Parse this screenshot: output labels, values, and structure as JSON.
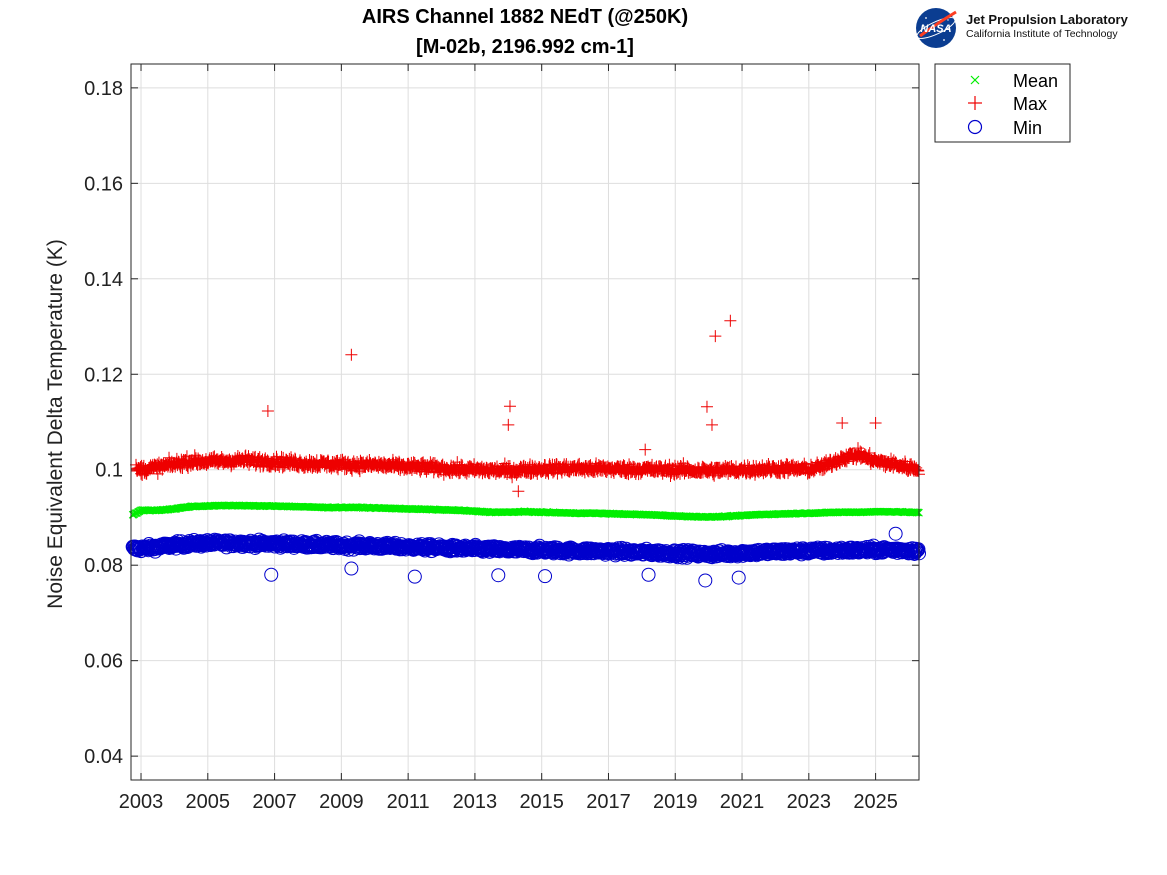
{
  "logo": {
    "name": "Jet Propulsion Laboratory",
    "subtitle": "California Institute of Technology",
    "badge": "NASA",
    "badge_icon": "nasa-meatball-icon"
  },
  "chart_data": {
    "type": "scatter",
    "title": "AIRS Channel 1882 NEdT (@250K)",
    "subtitle": "[M-02b, 2196.992 cm-1]",
    "xlabel": "",
    "ylabel": "Noise Equivalent Delta Temperature (K)",
    "xlim": [
      2002.7,
      2026.3
    ],
    "ylim": [
      0.035,
      0.185
    ],
    "x_ticks": [
      2003,
      2005,
      2007,
      2009,
      2011,
      2013,
      2015,
      2017,
      2019,
      2021,
      2023,
      2025
    ],
    "x_tick_labels": [
      "2003",
      "2005",
      "2007",
      "2009",
      "2011",
      "2013",
      "2015",
      "2017",
      "2019",
      "2021",
      "2023",
      "2025"
    ],
    "y_ticks": [
      0.04,
      0.06,
      0.08,
      0.1,
      0.12,
      0.14,
      0.16,
      0.18
    ],
    "y_tick_labels": [
      "0.04",
      "0.06",
      "0.08",
      "0.1",
      "0.12",
      "0.14",
      "0.16",
      "0.18"
    ],
    "grid": true,
    "legend_position": "outside-top-right",
    "colors": {
      "mean": "#00ee00",
      "max": "#ee0000",
      "min": "#0000cc"
    },
    "series": [
      {
        "name": "Mean",
        "marker": "x",
        "x": [
          2002.75,
          2003.0,
          2003.5,
          2004.0,
          2004.5,
          2005.0,
          2005.5,
          2006.0,
          2006.5,
          2007.0,
          2007.5,
          2008.0,
          2008.5,
          2009.0,
          2009.5,
          2010.0,
          2010.5,
          2011.0,
          2011.5,
          2012.0,
          2012.5,
          2013.0,
          2013.5,
          2014.0,
          2014.5,
          2015.0,
          2015.5,
          2016.0,
          2016.5,
          2017.0,
          2017.5,
          2018.0,
          2018.5,
          2019.0,
          2019.5,
          2020.0,
          2020.5,
          2021.0,
          2021.5,
          2022.0,
          2022.5,
          2023.0,
          2023.5,
          2024.0,
          2024.5,
          2025.0,
          2025.5,
          2026.0,
          2026.3
        ],
        "y": [
          0.0905,
          0.0915,
          0.0915,
          0.0918,
          0.0923,
          0.0924,
          0.0925,
          0.0925,
          0.0924,
          0.0924,
          0.0923,
          0.0922,
          0.0921,
          0.0921,
          0.0921,
          0.092,
          0.0919,
          0.0918,
          0.0917,
          0.0916,
          0.0915,
          0.0913,
          0.0911,
          0.0911,
          0.0912,
          0.0911,
          0.091,
          0.0909,
          0.0909,
          0.0908,
          0.0907,
          0.0906,
          0.0905,
          0.0903,
          0.0902,
          0.0901,
          0.0902,
          0.0904,
          0.0906,
          0.0907,
          0.0908,
          0.0909,
          0.091,
          0.0911,
          0.0911,
          0.0912,
          0.0912,
          0.0911,
          0.091
        ]
      },
      {
        "name": "Max",
        "marker": "+",
        "x": [
          2003.0,
          2003.5,
          2004.0,
          2004.5,
          2005.0,
          2005.5,
          2006.0,
          2006.5,
          2007.0,
          2007.5,
          2008.0,
          2008.5,
          2009.0,
          2009.5,
          2010.0,
          2010.5,
          2011.0,
          2011.5,
          2012.0,
          2012.5,
          2013.0,
          2013.5,
          2014.0,
          2014.5,
          2015.0,
          2015.5,
          2016.0,
          2016.5,
          2017.0,
          2017.5,
          2018.0,
          2018.5,
          2019.0,
          2019.5,
          2020.0,
          2020.5,
          2021.0,
          2021.5,
          2022.0,
          2022.5,
          2023.0,
          2023.5,
          2024.0,
          2024.5,
          2025.0,
          2025.5,
          2026.0,
          2026.3
        ],
        "y": [
          0.1,
          0.1005,
          0.1012,
          0.1018,
          0.1017,
          0.1018,
          0.102,
          0.1018,
          0.1017,
          0.1015,
          0.1013,
          0.1012,
          0.1011,
          0.101,
          0.101,
          0.1008,
          0.1006,
          0.1005,
          0.1003,
          0.1001,
          0.1,
          0.0999,
          0.0998,
          0.1,
          0.1002,
          0.1003,
          0.1003,
          0.1002,
          0.1002,
          0.1001,
          0.1001,
          0.1,
          0.1,
          0.0999,
          0.0998,
          0.0999,
          0.1,
          0.1001,
          0.1002,
          0.1002,
          0.1001,
          0.1008,
          0.1025,
          0.1032,
          0.1018,
          0.1012,
          0.1005,
          0.1002
        ],
        "outliers": [
          {
            "x": 2006.8,
            "y": 0.1123
          },
          {
            "x": 2009.3,
            "y": 0.1241
          },
          {
            "x": 2014.05,
            "y": 0.1133
          },
          {
            "x": 2014.0,
            "y": 0.1094
          },
          {
            "x": 2014.3,
            "y": 0.0955
          },
          {
            "x": 2020.2,
            "y": 0.128
          },
          {
            "x": 2020.65,
            "y": 0.1312
          },
          {
            "x": 2019.95,
            "y": 0.1132
          },
          {
            "x": 2020.1,
            "y": 0.1094
          },
          {
            "x": 2018.1,
            "y": 0.1042
          },
          {
            "x": 2024.0,
            "y": 0.1098
          },
          {
            "x": 2025.0,
            "y": 0.1098
          }
        ]
      },
      {
        "name": "Min",
        "marker": "o",
        "x": [
          2003.0,
          2003.5,
          2004.0,
          2004.5,
          2005.0,
          2005.5,
          2006.0,
          2006.5,
          2007.0,
          2007.5,
          2008.0,
          2008.5,
          2009.0,
          2009.5,
          2010.0,
          2010.5,
          2011.0,
          2011.5,
          2012.0,
          2012.5,
          2013.0,
          2013.5,
          2014.0,
          2014.5,
          2015.0,
          2015.5,
          2016.0,
          2016.5,
          2017.0,
          2017.5,
          2018.0,
          2018.5,
          2019.0,
          2019.5,
          2020.0,
          2020.5,
          2021.0,
          2021.5,
          2022.0,
          2022.5,
          2023.0,
          2023.5,
          2024.0,
          2024.5,
          2025.0,
          2025.5,
          2026.0,
          2026.3
        ],
        "y": [
          0.0835,
          0.0838,
          0.0842,
          0.0845,
          0.0846,
          0.0846,
          0.0846,
          0.0845,
          0.0845,
          0.0844,
          0.0843,
          0.0842,
          0.0841,
          0.0841,
          0.084,
          0.0839,
          0.0838,
          0.0837,
          0.0836,
          0.0835,
          0.0834,
          0.0833,
          0.0832,
          0.0832,
          0.0832,
          0.0831,
          0.083,
          0.083,
          0.0829,
          0.0828,
          0.0827,
          0.0826,
          0.0825,
          0.0824,
          0.0823,
          0.0824,
          0.0826,
          0.0827,
          0.0828,
          0.0829,
          0.083,
          0.083,
          0.0831,
          0.0831,
          0.0832,
          0.0832,
          0.0831,
          0.083
        ],
        "outliers": [
          {
            "x": 2006.9,
            "y": 0.078
          },
          {
            "x": 2009.3,
            "y": 0.0793
          },
          {
            "x": 2011.2,
            "y": 0.0776
          },
          {
            "x": 2013.7,
            "y": 0.0779
          },
          {
            "x": 2015.1,
            "y": 0.0777
          },
          {
            "x": 2018.2,
            "y": 0.078
          },
          {
            "x": 2019.9,
            "y": 0.0768
          },
          {
            "x": 2020.9,
            "y": 0.0774
          },
          {
            "x": 2025.6,
            "y": 0.0866
          }
        ]
      }
    ]
  }
}
